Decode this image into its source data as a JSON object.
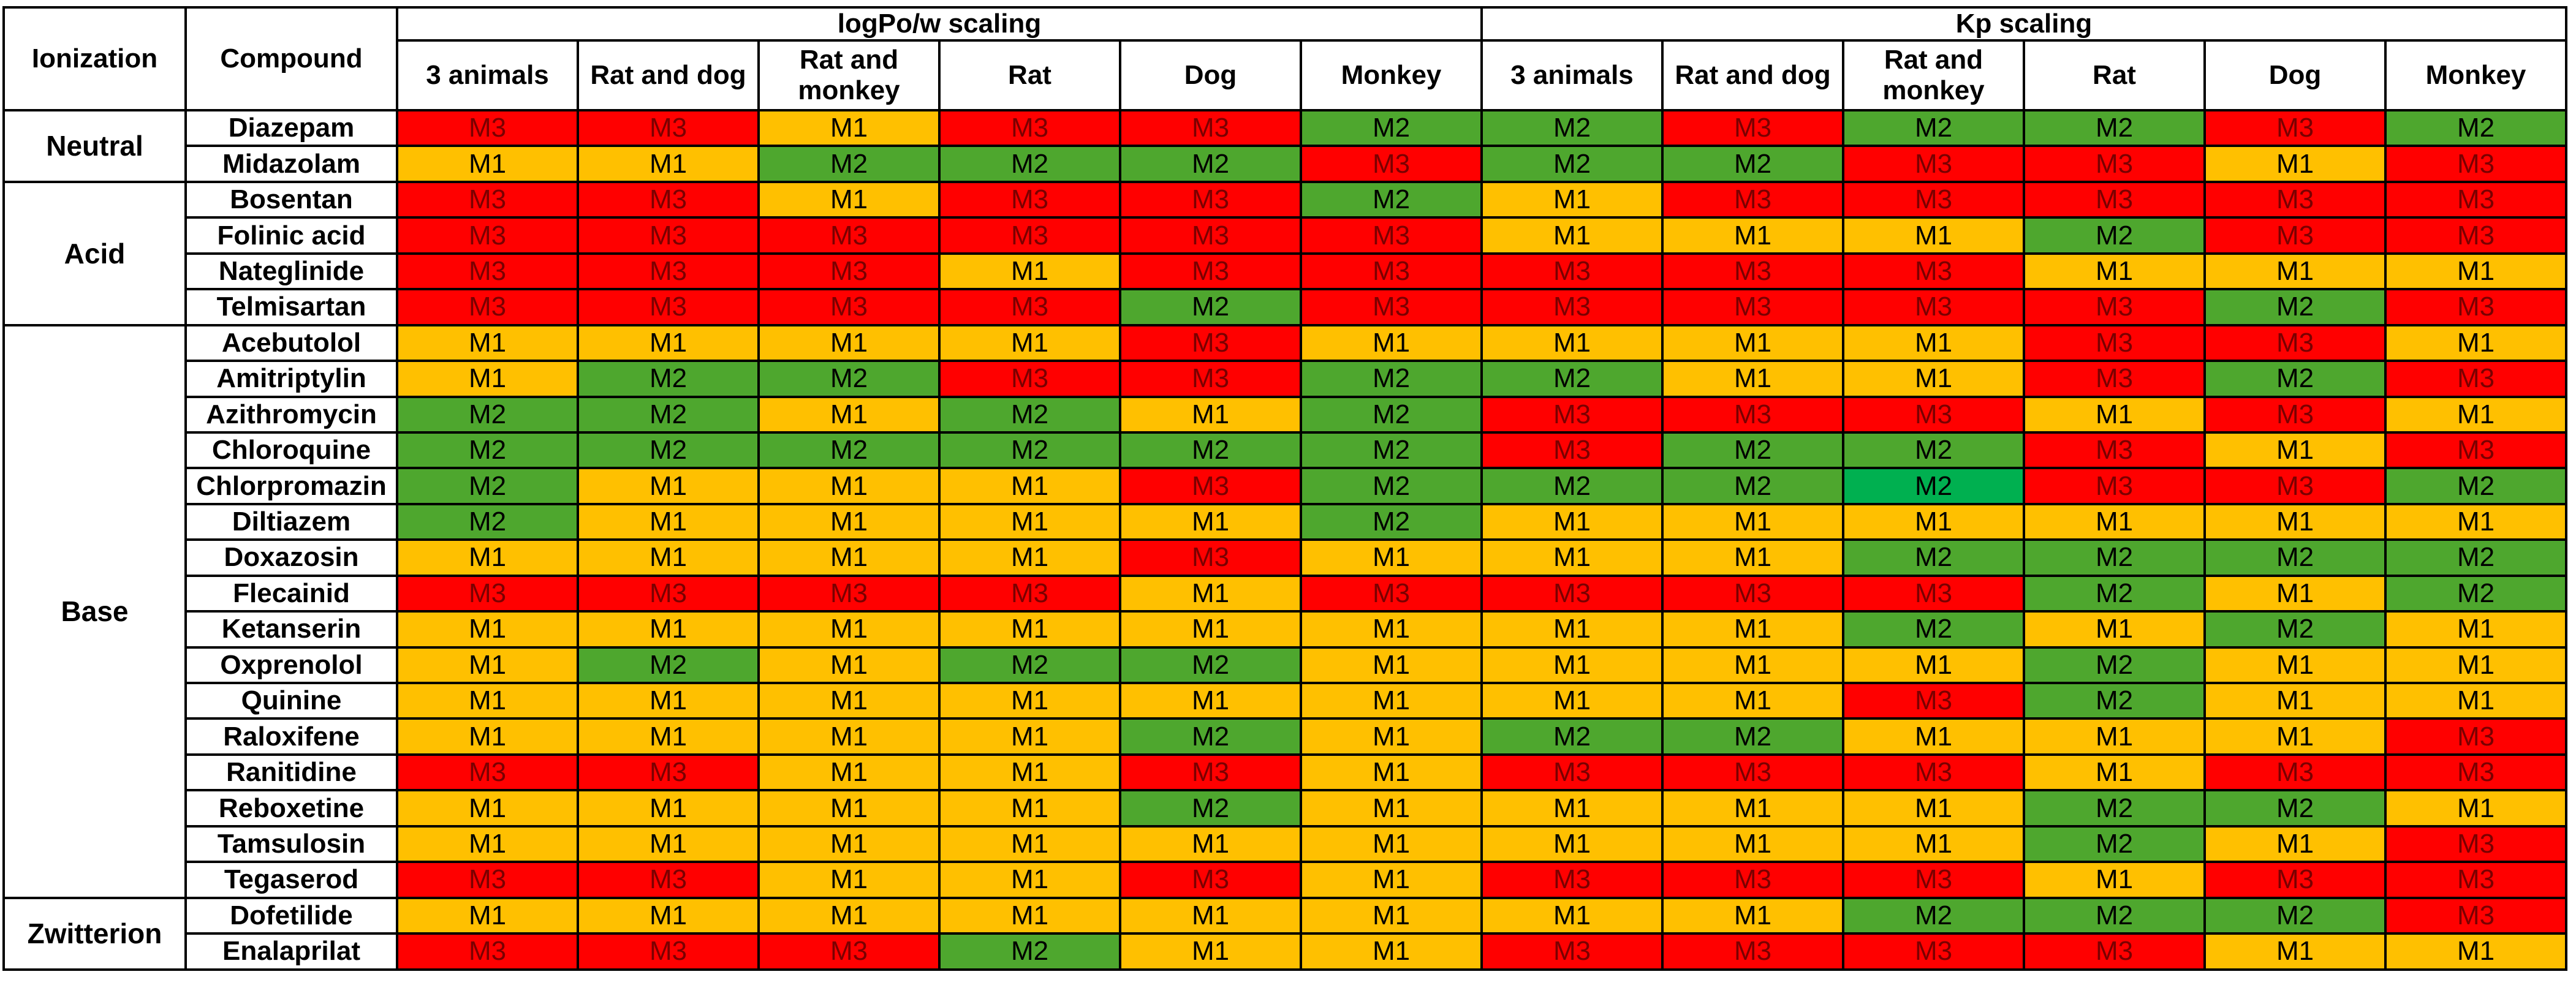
{
  "colors": {
    "M1": "#ffc000",
    "M2": "#4ea72e",
    "M2_bright": "#00b050",
    "M3": "#ff0000",
    "M3_text": "#7a0000"
  },
  "header": {
    "ionization": "Ionization",
    "compound": "Compound",
    "groups": [
      "logPo/w scaling",
      "Kp scaling"
    ],
    "columns": [
      "3 animals",
      "Rat and dog",
      "Rat and monkey",
      "Rat",
      "Dog",
      "Monkey",
      "3 animals",
      "Rat and dog",
      "Rat and monkey",
      "Rat",
      "Dog",
      "Monkey"
    ]
  },
  "groups": [
    {
      "ionization": "Neutral",
      "rows": [
        {
          "compound": "Diazepam",
          "values": [
            "M3",
            "M3",
            "M1",
            "M3",
            "M3",
            "M2",
            "M2",
            "M3",
            "M2",
            "M2",
            "M3",
            "M2"
          ]
        },
        {
          "compound": "Midazolam",
          "values": [
            "M1",
            "M1",
            "M2",
            "M2",
            "M2",
            "M3",
            "M2",
            "M2",
            "M3",
            "M3",
            "M1",
            "M3"
          ]
        }
      ]
    },
    {
      "ionization": "Acid",
      "rows": [
        {
          "compound": "Bosentan",
          "values": [
            "M3",
            "M3",
            "M1",
            "M3",
            "M3",
            "M2",
            "M1",
            "M3",
            "M3",
            "M3",
            "M3",
            "M3"
          ]
        },
        {
          "compound": "Folinic acid",
          "values": [
            "M3",
            "M3",
            "M3",
            "M3",
            "M3",
            "M3",
            "M1",
            "M1",
            "M1",
            "M2",
            "M3",
            "M3"
          ]
        },
        {
          "compound": "Nateglinide",
          "values": [
            "M3",
            "M3",
            "M3",
            "M1",
            "M3",
            "M3",
            "M3",
            "M3",
            "M3",
            "M1",
            "M1",
            "M1"
          ]
        },
        {
          "compound": "Telmisartan",
          "values": [
            "M3",
            "M3",
            "M3",
            "M3",
            "M2",
            "M3",
            "M3",
            "M3",
            "M3",
            "M3",
            "M2",
            "M3"
          ]
        }
      ]
    },
    {
      "ionization": "Base",
      "rows": [
        {
          "compound": "Acebutolol",
          "values": [
            "M1",
            "M1",
            "M1",
            "M1",
            "M3",
            "M1",
            "M1",
            "M1",
            "M1",
            "M3",
            "M3",
            "M1"
          ]
        },
        {
          "compound": "Amitriptylin",
          "values": [
            "M1",
            "M2",
            "M2",
            "M3",
            "M3",
            "M2",
            "M2",
            "M1",
            "M1",
            "M3",
            "M2",
            "M3"
          ]
        },
        {
          "compound": "Azithromycin",
          "values": [
            "M2",
            "M2",
            "M1",
            "M2",
            "M1",
            "M2",
            "M3",
            "M3",
            "M3",
            "M1",
            "M3",
            "M1"
          ]
        },
        {
          "compound": "Chloroquine",
          "values": [
            "M2",
            "M2",
            "M2",
            "M2",
            "M2",
            "M2",
            "M3",
            "M2",
            "M2",
            "M3",
            "M1",
            "M3"
          ]
        },
        {
          "compound": "Chlorpromazin",
          "values": [
            "M2",
            "M1",
            "M1",
            "M1",
            "M3",
            "M2",
            "M2",
            "M2",
            "M2b",
            "M3",
            "M3",
            "M2"
          ]
        },
        {
          "compound": "Diltiazem",
          "values": [
            "M2",
            "M1",
            "M1",
            "M1",
            "M1",
            "M2",
            "M1",
            "M1",
            "M1",
            "M1",
            "M1",
            "M1"
          ]
        },
        {
          "compound": "Doxazosin",
          "values": [
            "M1",
            "M1",
            "M1",
            "M1",
            "M3",
            "M1",
            "M1",
            "M1",
            "M2",
            "M2",
            "M2",
            "M2"
          ]
        },
        {
          "compound": "Flecainid",
          "values": [
            "M3",
            "M3",
            "M3",
            "M3",
            "M1",
            "M3",
            "M3",
            "M3",
            "M3",
            "M2",
            "M1",
            "M2"
          ]
        },
        {
          "compound": "Ketanserin",
          "values": [
            "M1",
            "M1",
            "M1",
            "M1",
            "M1",
            "M1",
            "M1",
            "M1",
            "M2",
            "M1",
            "M2",
            "M1"
          ]
        },
        {
          "compound": "Oxprenolol",
          "values": [
            "M1",
            "M2",
            "M1",
            "M2",
            "M2",
            "M1",
            "M1",
            "M1",
            "M1",
            "M2",
            "M1",
            "M1"
          ]
        },
        {
          "compound": "Quinine",
          "values": [
            "M1",
            "M1",
            "M1",
            "M1",
            "M1",
            "M1",
            "M1",
            "M1",
            "M3",
            "M2",
            "M1",
            "M1"
          ]
        },
        {
          "compound": "Raloxifene",
          "values": [
            "M1",
            "M1",
            "M1",
            "M1",
            "M2",
            "M1",
            "M2",
            "M2",
            "M1",
            "M1",
            "M1",
            "M3"
          ]
        },
        {
          "compound": "Ranitidine",
          "values": [
            "M3",
            "M3",
            "M1",
            "M1",
            "M3",
            "M1",
            "M3",
            "M3",
            "M3",
            "M1",
            "M3",
            "M3"
          ]
        },
        {
          "compound": "Reboxetine",
          "values": [
            "M1",
            "M1",
            "M1",
            "M1",
            "M2",
            "M1",
            "M1",
            "M1",
            "M1",
            "M2",
            "M2",
            "M1"
          ]
        },
        {
          "compound": "Tamsulosin",
          "values": [
            "M1",
            "M1",
            "M1",
            "M1",
            "M1",
            "M1",
            "M1",
            "M1",
            "M1",
            "M2",
            "M1",
            "M3"
          ]
        },
        {
          "compound": "Tegaserod",
          "values": [
            "M3",
            "M3",
            "M1",
            "M1",
            "M3",
            "M1",
            "M3",
            "M3",
            "M3",
            "M1",
            "M3",
            "M3"
          ]
        }
      ]
    },
    {
      "ionization": "Zwitterion",
      "rows": [
        {
          "compound": "Dofetilide",
          "values": [
            "M1",
            "M1",
            "M1",
            "M1",
            "M1",
            "M1",
            "M1",
            "M1",
            "M2",
            "M2",
            "M2",
            "M3"
          ]
        },
        {
          "compound": "Enalaprilat",
          "values": [
            "M3",
            "M3",
            "M3",
            "M2",
            "M1",
            "M1",
            "M3",
            "M3",
            "M3",
            "M3",
            "M1",
            "M1"
          ]
        }
      ]
    }
  ]
}
